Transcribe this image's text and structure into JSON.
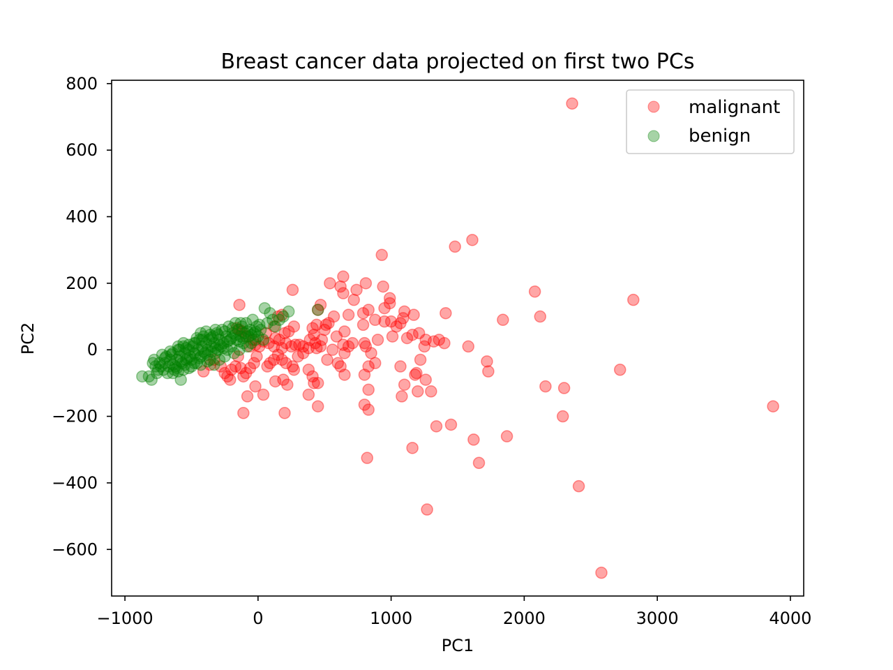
{
  "chart_data": {
    "type": "scatter",
    "title": "Breast cancer data projected on first two PCs",
    "xlabel": "PC1",
    "ylabel": "PC2",
    "xlim": [
      -1100,
      4100
    ],
    "ylim": [
      -740,
      810
    ],
    "xticks": [
      {
        "value": -1000,
        "label": "−1000"
      },
      {
        "value": 0,
        "label": "0"
      },
      {
        "value": 1000,
        "label": "1000"
      },
      {
        "value": 2000,
        "label": "2000"
      },
      {
        "value": 3000,
        "label": "3000"
      },
      {
        "value": 4000,
        "label": "4000"
      }
    ],
    "yticks": [
      {
        "value": 800,
        "label": "800"
      },
      {
        "value": 600,
        "label": "600"
      },
      {
        "value": 400,
        "label": "400"
      },
      {
        "value": 200,
        "label": "200"
      },
      {
        "value": 0,
        "label": "0"
      },
      {
        "value": -200,
        "label": "−200"
      },
      {
        "value": -400,
        "label": "−400"
      },
      {
        "value": -600,
        "label": "−600"
      }
    ],
    "grid": false,
    "legend_position": "top-right",
    "series": [
      {
        "name": "malignant",
        "color": "#ff0000",
        "points": [
          [
            2360,
            740
          ],
          [
            1610,
            330
          ],
          [
            1480,
            310
          ],
          [
            930,
            285
          ],
          [
            2820,
            150
          ],
          [
            2080,
            175
          ],
          [
            2120,
            100
          ],
          [
            1840,
            90
          ],
          [
            1410,
            110
          ],
          [
            3870,
            -170
          ],
          [
            2720,
            -60
          ],
          [
            2160,
            -110
          ],
          [
            2300,
            -115
          ],
          [
            2290,
            -200
          ],
          [
            1870,
            -260
          ],
          [
            1620,
            -270
          ],
          [
            1660,
            -340
          ],
          [
            2410,
            -410
          ],
          [
            2580,
            -670
          ],
          [
            1270,
            -480
          ],
          [
            1450,
            -225
          ],
          [
            1340,
            -230
          ],
          [
            1160,
            -295
          ],
          [
            820,
            -325
          ],
          [
            830,
            -180
          ],
          [
            800,
            -165
          ],
          [
            830,
            -120
          ],
          [
            1720,
            -35
          ],
          [
            1730,
            -65
          ],
          [
            1580,
            10
          ],
          [
            1400,
            20
          ],
          [
            1360,
            30
          ],
          [
            1320,
            25
          ],
          [
            1260,
            30
          ],
          [
            1250,
            10
          ],
          [
            1210,
            50
          ],
          [
            1220,
            -30
          ],
          [
            1260,
            -90
          ],
          [
            1300,
            -125
          ],
          [
            1200,
            -125
          ],
          [
            1190,
            -70
          ],
          [
            1180,
            -75
          ],
          [
            1100,
            -105
          ],
          [
            1080,
            -140
          ],
          [
            1070,
            -50
          ],
          [
            1120,
            35
          ],
          [
            1160,
            45
          ],
          [
            1170,
            105
          ],
          [
            1100,
            115
          ],
          [
            1090,
            95
          ],
          [
            1070,
            80
          ],
          [
            1040,
            70
          ],
          [
            1000,
            85
          ],
          [
            990,
            140
          ],
          [
            990,
            155
          ],
          [
            950,
            125
          ],
          [
            940,
            190
          ],
          [
            880,
            90
          ],
          [
            950,
            85
          ],
          [
            1010,
            40
          ],
          [
            900,
            30
          ],
          [
            880,
            -40
          ],
          [
            850,
            -10
          ],
          [
            830,
            -50
          ],
          [
            800,
            -75
          ],
          [
            810,
            10
          ],
          [
            800,
            20
          ],
          [
            790,
            75
          ],
          [
            790,
            110
          ],
          [
            830,
            120
          ],
          [
            810,
            200
          ],
          [
            740,
            180
          ],
          [
            720,
            150
          ],
          [
            710,
            20
          ],
          [
            680,
            10
          ],
          [
            640,
            220
          ],
          [
            620,
            190
          ],
          [
            640,
            170
          ],
          [
            680,
            105
          ],
          [
            650,
            55
          ],
          [
            640,
            15
          ],
          [
            650,
            -10
          ],
          [
            620,
            -50
          ],
          [
            650,
            -75
          ],
          [
            600,
            -40
          ],
          [
            570,
            100
          ],
          [
            540,
            200
          ],
          [
            530,
            80
          ],
          [
            510,
            75
          ],
          [
            500,
            60
          ],
          [
            470,
            135
          ],
          [
            450,
            120
          ],
          [
            440,
            75
          ],
          [
            410,
            65
          ],
          [
            420,
            45
          ],
          [
            390,
            30
          ],
          [
            430,
            20
          ],
          [
            440,
            5
          ],
          [
            380,
            5
          ],
          [
            340,
            10
          ],
          [
            310,
            15
          ],
          [
            280,
            15
          ],
          [
            250,
            10
          ],
          [
            260,
            180
          ],
          [
            270,
            70
          ],
          [
            230,
            55
          ],
          [
            200,
            50
          ],
          [
            210,
            20
          ],
          [
            180,
            5
          ],
          [
            160,
            30
          ],
          [
            130,
            35
          ],
          [
            120,
            10
          ],
          [
            80,
            20
          ],
          [
            60,
            50
          ],
          [
            40,
            25
          ],
          [
            10,
            10
          ],
          [
            -20,
            15
          ],
          [
            -40,
            30
          ],
          [
            -60,
            10
          ],
          [
            -90,
            40
          ],
          [
            -120,
            55
          ],
          [
            -140,
            60
          ],
          [
            -160,
            65
          ],
          [
            -140,
            135
          ],
          [
            150,
            100
          ],
          [
            180,
            105
          ],
          [
            120,
            70
          ],
          [
            -10,
            -20
          ],
          [
            -30,
            -40
          ],
          [
            -60,
            -55
          ],
          [
            -90,
            -70
          ],
          [
            -110,
            -80
          ],
          [
            -130,
            -55
          ],
          [
            -150,
            -20
          ],
          [
            -170,
            -50
          ],
          [
            -200,
            -60
          ],
          [
            -210,
            -90
          ],
          [
            -230,
            -80
          ],
          [
            -250,
            -70
          ],
          [
            -280,
            -50
          ],
          [
            -330,
            -30
          ],
          [
            -360,
            -45
          ],
          [
            -410,
            -65
          ],
          [
            -20,
            -110
          ],
          [
            -80,
            -140
          ],
          [
            -110,
            -190
          ],
          [
            40,
            -135
          ],
          [
            70,
            -50
          ],
          [
            90,
            -40
          ],
          [
            120,
            -30
          ],
          [
            150,
            -15
          ],
          [
            180,
            -30
          ],
          [
            210,
            -40
          ],
          [
            260,
            -50
          ],
          [
            300,
            -20
          ],
          [
            340,
            -10
          ],
          [
            380,
            -60
          ],
          [
            410,
            -80
          ],
          [
            420,
            -100
          ],
          [
            450,
            -100
          ],
          [
            380,
            -135
          ],
          [
            450,
            -170
          ],
          [
            270,
            -60
          ],
          [
            220,
            -105
          ],
          [
            190,
            -90
          ],
          [
            130,
            -95
          ],
          [
            200,
            -190
          ],
          [
            520,
            -30
          ],
          [
            560,
            0
          ],
          [
            590,
            40
          ],
          [
            480,
            30
          ],
          [
            470,
            10
          ]
        ]
      },
      {
        "name": "benign",
        "color": "#008000",
        "points": [
          [
            -870,
            -80
          ],
          [
            -820,
            -80
          ],
          [
            -800,
            -90
          ],
          [
            -790,
            -40
          ],
          [
            -770,
            -50
          ],
          [
            -750,
            -60
          ],
          [
            -730,
            -50
          ],
          [
            -700,
            -40
          ],
          [
            -690,
            -20
          ],
          [
            -680,
            -70
          ],
          [
            -660,
            -30
          ],
          [
            -640,
            -10
          ],
          [
            -630,
            -60
          ],
          [
            -620,
            -50
          ],
          [
            -610,
            -30
          ],
          [
            -600,
            0
          ],
          [
            -590,
            -20
          ],
          [
            -580,
            -90
          ],
          [
            -570,
            -40
          ],
          [
            -560,
            10
          ],
          [
            -550,
            -10
          ],
          [
            -540,
            -30
          ],
          [
            -520,
            0
          ],
          [
            -510,
            -20
          ],
          [
            -500,
            -50
          ],
          [
            -490,
            10
          ],
          [
            -480,
            -10
          ],
          [
            -470,
            20
          ],
          [
            -460,
            -40
          ],
          [
            -450,
            0
          ],
          [
            -440,
            30
          ],
          [
            -430,
            -20
          ],
          [
            -420,
            10
          ],
          [
            -410,
            40
          ],
          [
            -400,
            -10
          ],
          [
            -390,
            20
          ],
          [
            -380,
            0
          ],
          [
            -370,
            30
          ],
          [
            -360,
            -30
          ],
          [
            -350,
            10
          ],
          [
            -340,
            40
          ],
          [
            -330,
            20
          ],
          [
            -320,
            -10
          ],
          [
            -310,
            50
          ],
          [
            -300,
            0
          ],
          [
            -290,
            30
          ],
          [
            -280,
            10
          ],
          [
            -270,
            60
          ],
          [
            -260,
            20
          ],
          [
            -250,
            -20
          ],
          [
            -240,
            40
          ],
          [
            -230,
            0
          ],
          [
            -220,
            70
          ],
          [
            -210,
            30
          ],
          [
            -200,
            10
          ],
          [
            -190,
            50
          ],
          [
            -180,
            -10
          ],
          [
            -170,
            80
          ],
          [
            -160,
            30
          ],
          [
            -150,
            60
          ],
          [
            -140,
            0
          ],
          [
            -130,
            40
          ],
          [
            -120,
            70
          ],
          [
            -110,
            20
          ],
          [
            -100,
            50
          ],
          [
            -90,
            80
          ],
          [
            -80,
            10
          ],
          [
            -70,
            40
          ],
          [
            -60,
            60
          ],
          [
            -50,
            20
          ],
          [
            -40,
            90
          ],
          [
            -30,
            50
          ],
          [
            -20,
            30
          ],
          [
            -10,
            70
          ],
          [
            0,
            40
          ],
          [
            20,
            60
          ],
          [
            40,
            30
          ],
          [
            50,
            125
          ],
          [
            70,
            80
          ],
          [
            90,
            110
          ],
          [
            110,
            90
          ],
          [
            130,
            70
          ],
          [
            160,
            90
          ],
          [
            190,
            100
          ],
          [
            230,
            115
          ],
          [
            450,
            120
          ],
          [
            -320,
            60
          ],
          [
            -360,
            45
          ],
          [
            -420,
            30
          ],
          [
            -480,
            20
          ],
          [
            -520,
            15
          ],
          [
            -560,
            20
          ],
          [
            -600,
            10
          ],
          [
            -650,
            -15
          ],
          [
            -700,
            -25
          ],
          [
            -740,
            -40
          ],
          [
            -760,
            -70
          ],
          [
            -710,
            -60
          ],
          [
            -670,
            -50
          ],
          [
            -640,
            -45
          ],
          [
            -610,
            -55
          ],
          [
            -580,
            -35
          ],
          [
            -550,
            -45
          ],
          [
            -530,
            -25
          ],
          [
            -500,
            -30
          ],
          [
            -470,
            -15
          ],
          [
            -440,
            -25
          ],
          [
            -410,
            -5
          ],
          [
            -380,
            -15
          ],
          [
            -350,
            -5
          ],
          [
            -320,
            5
          ],
          [
            -290,
            15
          ],
          [
            -260,
            5
          ],
          [
            -230,
            25
          ],
          [
            -200,
            35
          ],
          [
            -170,
            45
          ],
          [
            -140,
            25
          ],
          [
            -110,
            35
          ],
          [
            -80,
            55
          ],
          [
            -50,
            45
          ],
          [
            -20,
            55
          ],
          [
            10,
            75
          ],
          [
            -430,
            50
          ],
          [
            -390,
            55
          ],
          [
            -350,
            35
          ],
          [
            -300,
            45
          ],
          [
            -250,
            55
          ],
          [
            -190,
            65
          ],
          [
            -130,
            80
          ],
          [
            -460,
            35
          ],
          [
            -540,
            5
          ],
          [
            -590,
            0
          ],
          [
            -660,
            -5
          ],
          [
            -720,
            -15
          ],
          [
            -780,
            -30
          ],
          [
            -290,
            -30
          ],
          [
            -330,
            -45
          ],
          [
            -380,
            -35
          ],
          [
            -430,
            -45
          ],
          [
            -480,
            -40
          ],
          [
            -520,
            -55
          ],
          [
            -560,
            -60
          ],
          [
            -600,
            -65
          ],
          [
            -640,
            -70
          ]
        ]
      }
    ]
  }
}
